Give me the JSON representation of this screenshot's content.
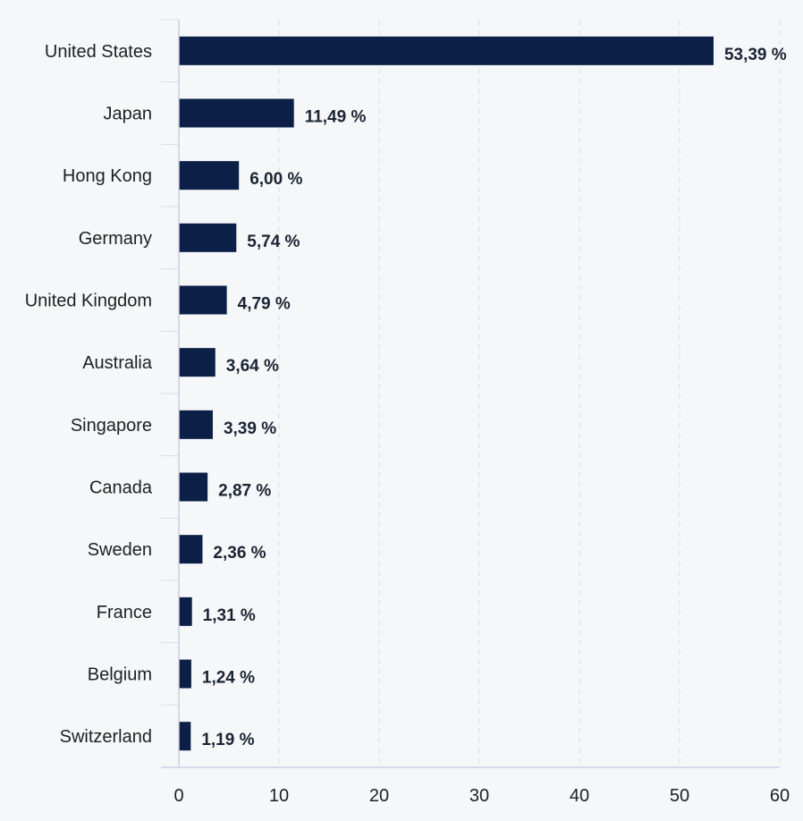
{
  "chart_data": {
    "type": "bar",
    "orientation": "horizontal",
    "categories": [
      "United States",
      "Japan",
      "Hong Kong",
      "Germany",
      "United Kingdom",
      "Australia",
      "Singapore",
      "Canada",
      "Sweden",
      "France",
      "Belgium",
      "Switzerland"
    ],
    "values": [
      53.39,
      11.49,
      6.0,
      5.74,
      4.79,
      3.64,
      3.39,
      2.87,
      2.36,
      1.31,
      1.24,
      1.19
    ],
    "data_labels": [
      "53,39 %",
      "11,49 %",
      "6,00 %",
      "5,74 %",
      "4,79 %",
      "3,64 %",
      "3,39 %",
      "2,87 %",
      "2,36 %",
      "1,31 %",
      "1,24 %",
      "1,19 %"
    ],
    "xticks": [
      0,
      10,
      20,
      30,
      40,
      50,
      60
    ],
    "xtick_labels": [
      "0",
      "10",
      "20",
      "30",
      "40",
      "50",
      "60"
    ],
    "xlim": [
      0,
      60
    ],
    "title": "",
    "xlabel": "",
    "ylabel": "",
    "grid": true,
    "legend": "none",
    "bar_color": "#0b1f47",
    "background_color": "#f6f7f9"
  }
}
